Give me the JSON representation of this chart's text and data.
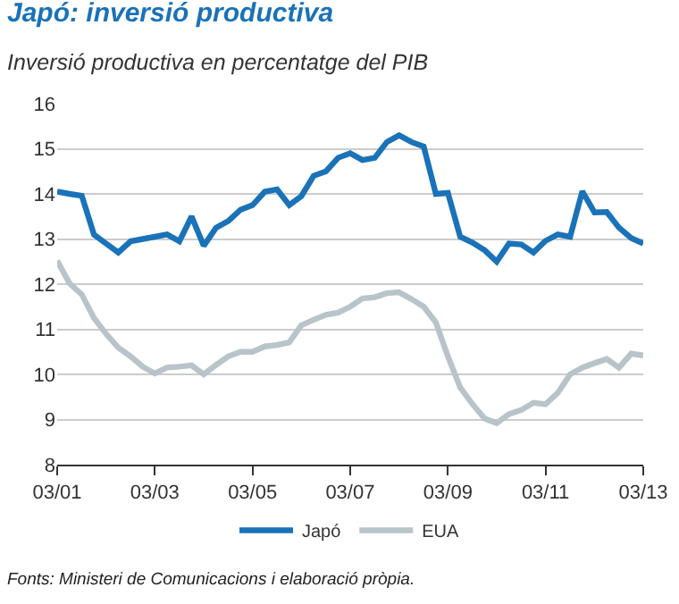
{
  "chart_data": {
    "type": "line",
    "title": "Japó: inversió productiva",
    "subtitle": "Inversió productiva en percentatge del PIB",
    "x": [
      "2001-03",
      "2001-06",
      "2001-09",
      "2001-12",
      "2002-03",
      "2002-06",
      "2002-09",
      "2002-12",
      "2003-03",
      "2003-06",
      "2003-09",
      "2003-12",
      "2004-03",
      "2004-06",
      "2004-09",
      "2004-12",
      "2005-03",
      "2005-06",
      "2005-09",
      "2005-12",
      "2006-03",
      "2006-06",
      "2006-09",
      "2006-12",
      "2007-03",
      "2007-06",
      "2007-09",
      "2007-12",
      "2008-03",
      "2008-06",
      "2008-09",
      "2008-12",
      "2009-03",
      "2009-06",
      "2009-09",
      "2009-12",
      "2010-03",
      "2010-06",
      "2010-09",
      "2010-12",
      "2011-03",
      "2011-06",
      "2011-09",
      "2011-12",
      "2012-03",
      "2012-06",
      "2012-09",
      "2012-12",
      "2013-03"
    ],
    "series": [
      {
        "name": "Japó",
        "color": "#1a72b8",
        "values": [
          14.05,
          14.0,
          13.96,
          13.1,
          12.9,
          12.7,
          12.95,
          13.0,
          13.05,
          13.1,
          12.95,
          13.5,
          12.85,
          13.25,
          13.4,
          13.65,
          13.75,
          14.05,
          14.1,
          13.75,
          13.95,
          14.4,
          14.5,
          14.8,
          14.9,
          14.75,
          14.8,
          15.15,
          15.3,
          15.15,
          15.05,
          14.0,
          14.02,
          13.05,
          12.92,
          12.75,
          12.5,
          12.9,
          12.88,
          12.7,
          12.96,
          13.1,
          13.05,
          14.06,
          13.59,
          13.6,
          13.25,
          13.02,
          12.9
        ]
      },
      {
        "name": "EUA",
        "color": "#b8c4c9",
        "values": [
          12.52,
          12.02,
          11.77,
          11.25,
          10.9,
          10.59,
          10.4,
          10.17,
          10.02,
          10.15,
          10.17,
          10.2,
          10.0,
          10.21,
          10.4,
          10.5,
          10.5,
          10.62,
          10.65,
          10.71,
          11.09,
          11.21,
          11.32,
          11.37,
          11.5,
          11.68,
          11.71,
          11.8,
          11.82,
          11.67,
          11.5,
          11.15,
          10.4,
          9.71,
          9.34,
          9.02,
          8.92,
          9.12,
          9.21,
          9.37,
          9.34,
          9.59,
          10.0,
          10.15,
          10.25,
          10.34,
          10.15,
          10.46,
          10.42
        ]
      }
    ],
    "xlim": [
      "2001-03",
      "2013-03"
    ],
    "xticks": [
      {
        "value": "2001-03",
        "label": "03/01"
      },
      {
        "value": "2003-03",
        "label": "03/03"
      },
      {
        "value": "2005-03",
        "label": "03/05"
      },
      {
        "value": "2007-03",
        "label": "03/07"
      },
      {
        "value": "2009-03",
        "label": "03/09"
      },
      {
        "value": "2011-03",
        "label": "03/11"
      },
      {
        "value": "2013-03",
        "label": "03/13"
      }
    ],
    "ylim": [
      8,
      16
    ],
    "yticks": [
      8,
      9,
      10,
      11,
      12,
      13,
      14,
      15,
      16
    ],
    "grid": "y",
    "legend": "bottom",
    "line_style": "solid",
    "marker": "none",
    "annotations": [
      "Fonts: Ministeri de Comunicacions i elaboració pròpia."
    ]
  }
}
